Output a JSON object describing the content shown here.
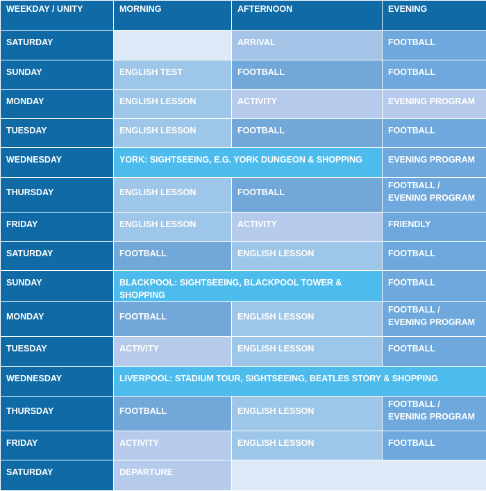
{
  "header": {
    "col_day": "WEEKDAY / UNITY",
    "col_morning": "MORNING",
    "col_afternoon": "AFTERNOON",
    "col_evening": "EVENING"
  },
  "rows": [
    {
      "day": "SATURDAY",
      "afternoon": "ARRIVAL",
      "evening": "FOOTBALL"
    },
    {
      "day": "SUNDAY",
      "morning": "ENGLISH TEST",
      "afternoon": "FOOTBALL",
      "evening": "FOOTBALL"
    },
    {
      "day": "MONDAY",
      "morning": "ENGLISH LESSON",
      "afternoon": "ACTIVITY",
      "evening": "EVENING PROGRAM"
    },
    {
      "day": "TUESDAY",
      "morning": "ENGLISH LESSON",
      "afternoon": "FOOTBALL",
      "evening": "FOOTBALL"
    },
    {
      "day": "WEDNESDAY",
      "excursion": "YORK: SIGHTSEEING, E.G. YORK DUNGEON & SHOPPING",
      "evening": "EVENING PROGRAM"
    },
    {
      "day": "THURSDAY",
      "morning": "ENGLISH LESSON",
      "afternoon": "FOOTBALL",
      "evening": "FOOTBALL /\nEVENING PROGRAM"
    },
    {
      "day": "FRIDAY",
      "morning": "ENGLISH LESSON",
      "afternoon": "ACTIVITY",
      "evening": "FRIENDLY"
    },
    {
      "day": "SATURDAY",
      "morning": "FOOTBALL",
      "afternoon": "ENGLISH LESSON",
      "evening": "FOOTBALL"
    },
    {
      "day": "SUNDAY",
      "excursion": "BLACKPOOL: SIGHTSEEING, BLACKPOOL TOWER & SHOPPING",
      "evening": "FOOTBALL"
    },
    {
      "day": "MONDAY",
      "morning": "FOOTBALL",
      "afternoon": "ENGLISH LESSON",
      "evening": "FOOTBALL /\nEVENING PROGRAM"
    },
    {
      "day": "TUESDAY",
      "morning": "ACTIVITY",
      "afternoon": "ENGLISH LESSON",
      "evening": "FOOTBALL"
    },
    {
      "day": "WEDNESDAY",
      "excursion": "LIVERPOOL: STADIUM TOUR, SIGHTSEEING, BEATLES STORY & SHOPPING"
    },
    {
      "day": "THURSDAY",
      "morning": "FOOTBALL",
      "afternoon": "ENGLISH LESSON",
      "evening": "FOOTBALL /\nEVENING PROGRAM"
    },
    {
      "day": "FRIDAY",
      "morning": "ACTIVITY",
      "afternoon": "ENGLISH LESSON",
      "evening": "FOOTBALL"
    },
    {
      "day": "SATURDAY",
      "morning": "DEPARTURE"
    }
  ]
}
